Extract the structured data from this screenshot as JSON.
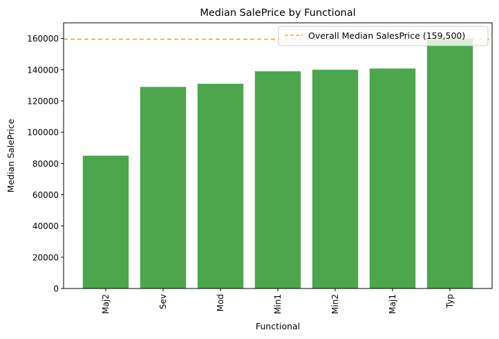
{
  "chart_data": {
    "type": "bar",
    "title": "Median SalePrice by Functional",
    "xlabel": "Functional",
    "ylabel": "Median SalePrice",
    "categories": [
      "Maj2",
      "Sev",
      "Mod",
      "Min1",
      "Min2",
      "Maj1",
      "Typ"
    ],
    "values": [
      85000,
      129000,
      131000,
      139000,
      140000,
      140750,
      160000
    ],
    "ylim": [
      0,
      170000
    ],
    "yticks": [
      0,
      20000,
      40000,
      60000,
      80000,
      100000,
      120000,
      140000,
      160000
    ],
    "bar_color": "#4ca64c",
    "reference_line": {
      "value": 159500,
      "label": "Overall Median SalesPrice (159,500)",
      "color": "#ffa500",
      "style": "dashed"
    },
    "legend_position": "top-right",
    "grid": false
  }
}
